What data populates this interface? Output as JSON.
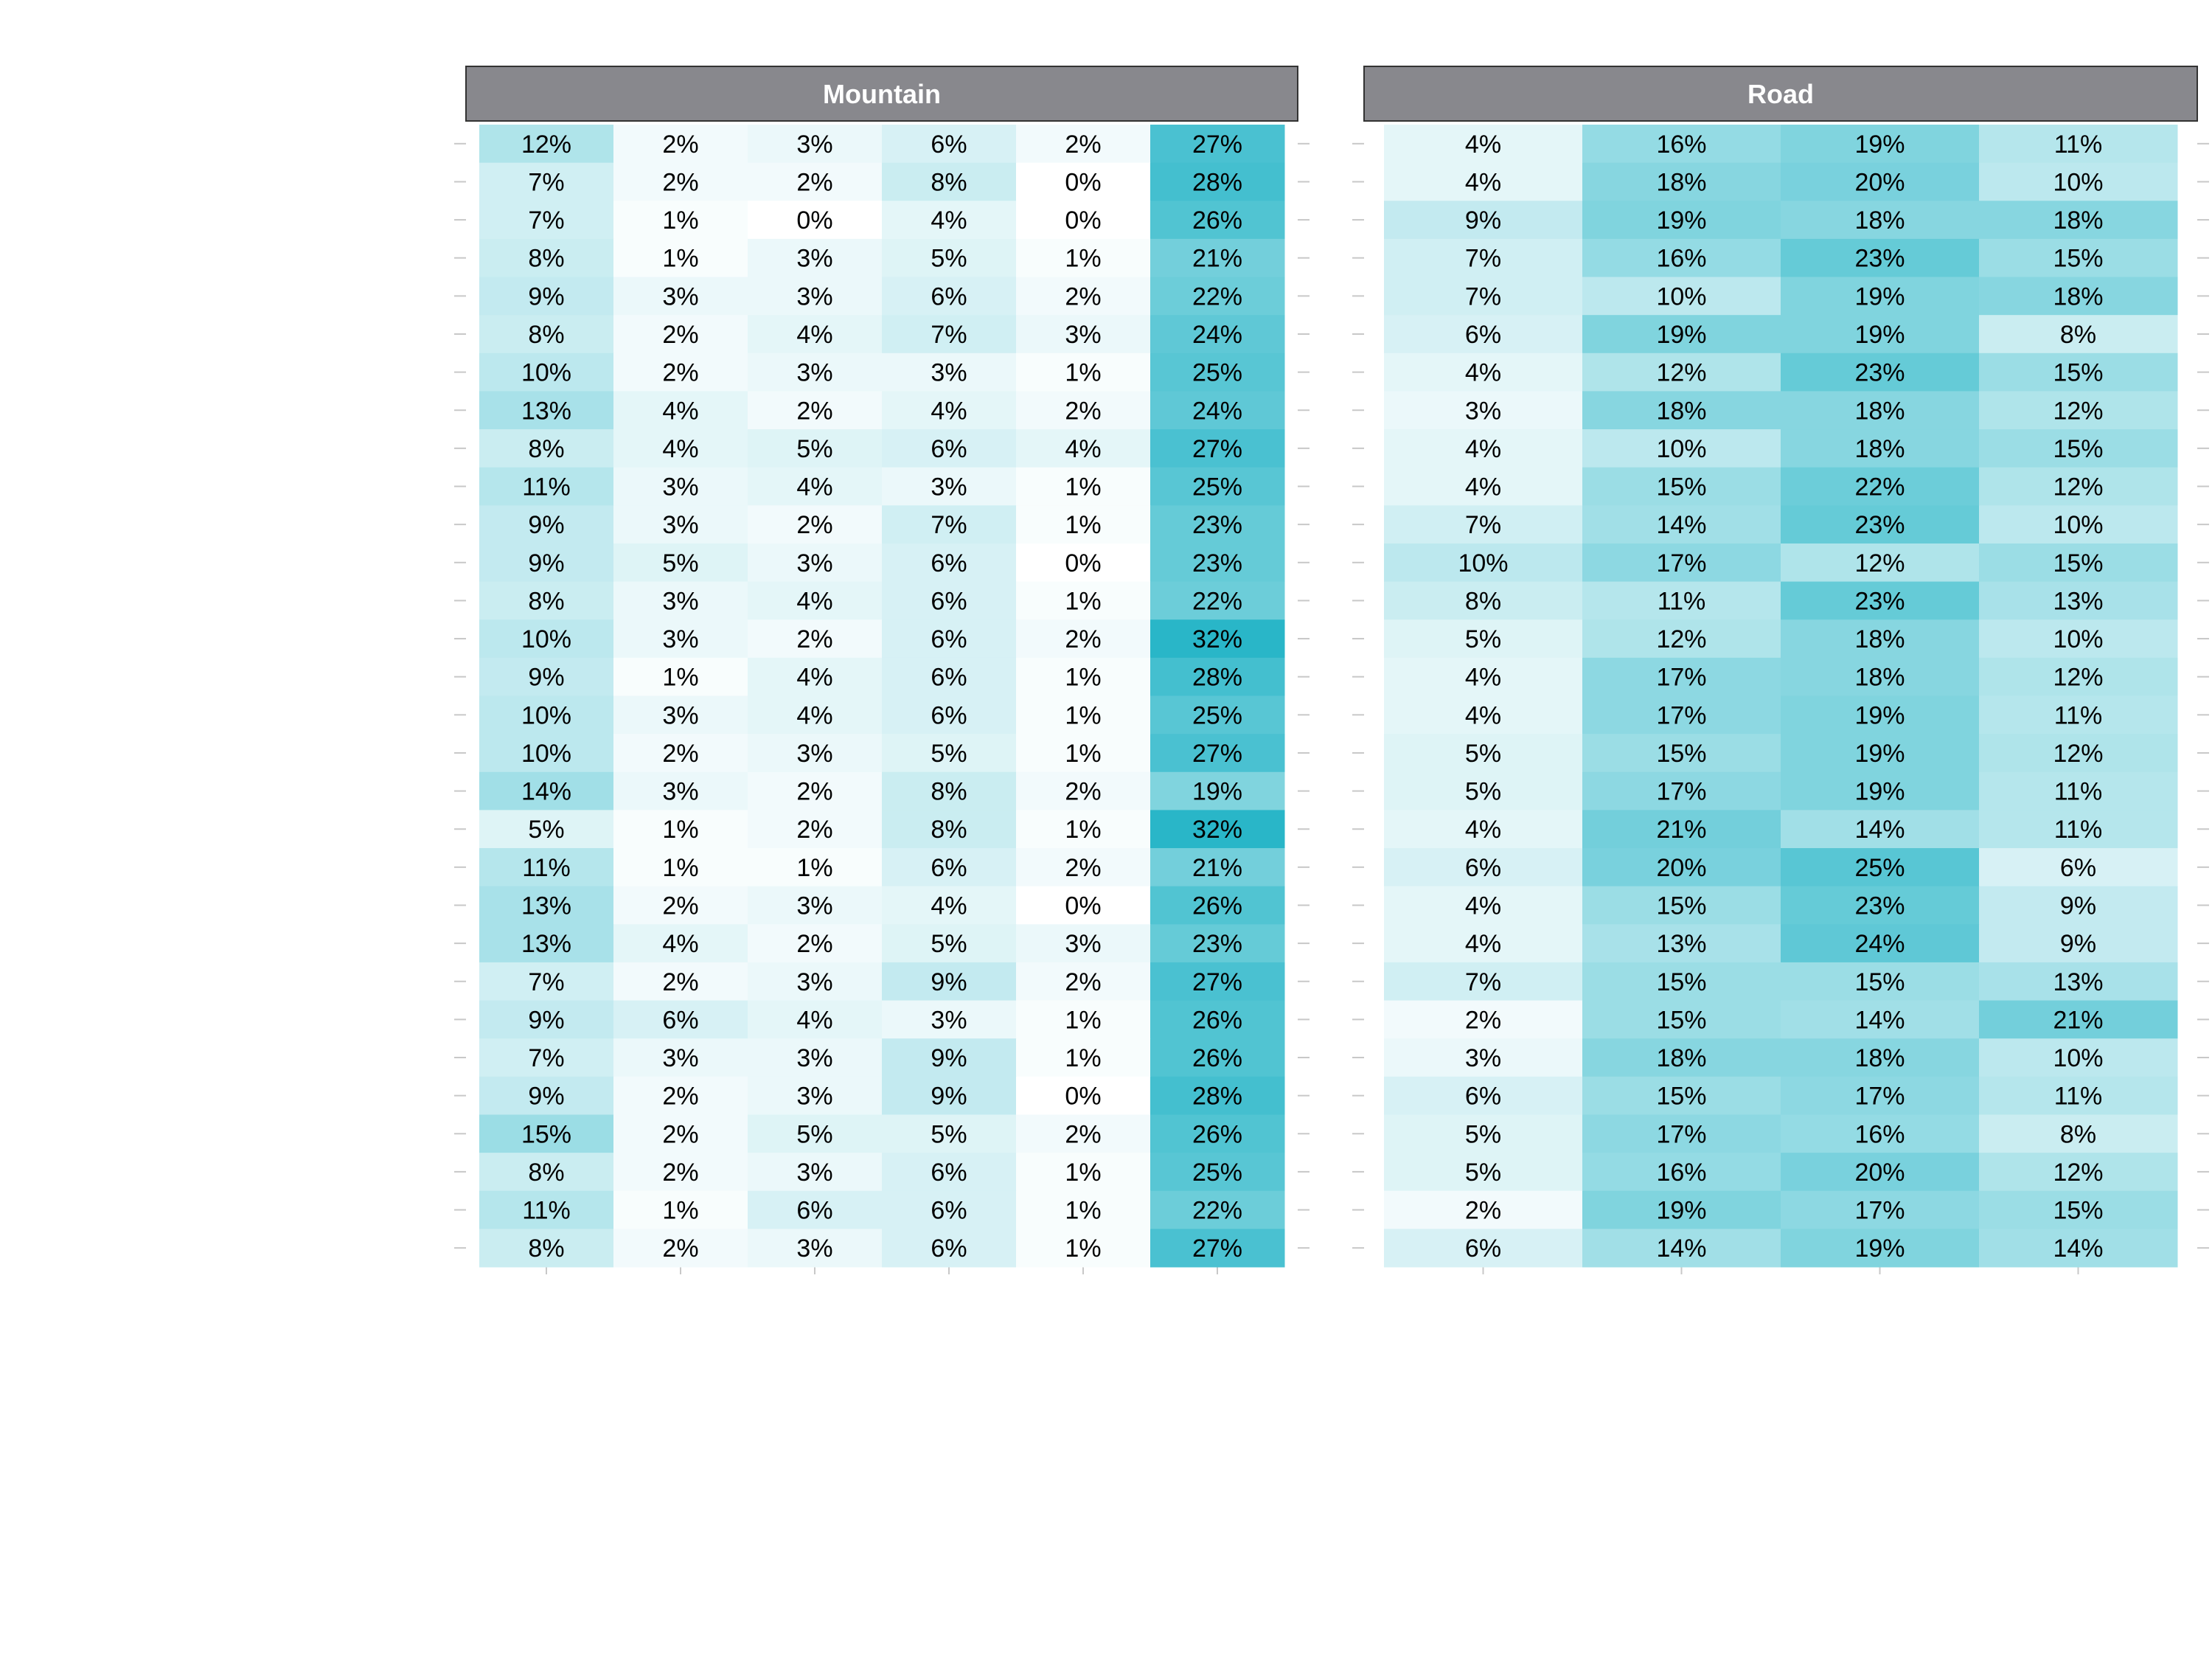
{
  "chart_data": {
    "type": "heatmap",
    "title": "",
    "xlabel": "",
    "ylabel": "",
    "value_format": "percent",
    "color_low": "#ffffff",
    "color_high": "#29b6c8",
    "strip_color": "#88888d",
    "strip_text_color": "#ffffff",
    "grid": false,
    "tick_color": "#c8c8c8",
    "panels": [
      {
        "name": "Mountain",
        "values": [
          [
            0.12,
            0.02,
            0.03,
            0.06,
            0.02,
            0.27
          ],
          [
            0.07,
            0.02,
            0.02,
            0.08,
            0.0,
            0.28
          ],
          [
            0.07,
            0.01,
            0.0,
            0.04,
            0.0,
            0.26
          ],
          [
            0.08,
            0.01,
            0.03,
            0.05,
            0.01,
            0.21
          ],
          [
            0.09,
            0.03,
            0.03,
            0.06,
            0.02,
            0.22
          ],
          [
            0.08,
            0.02,
            0.04,
            0.07,
            0.03,
            0.24
          ],
          [
            0.1,
            0.02,
            0.03,
            0.03,
            0.01,
            0.25
          ],
          [
            0.13,
            0.04,
            0.02,
            0.04,
            0.02,
            0.24
          ],
          [
            0.08,
            0.04,
            0.05,
            0.06,
            0.04,
            0.27
          ],
          [
            0.11,
            0.03,
            0.04,
            0.03,
            0.01,
            0.25
          ],
          [
            0.09,
            0.03,
            0.02,
            0.07,
            0.01,
            0.23
          ],
          [
            0.09,
            0.05,
            0.03,
            0.06,
            0.0,
            0.23
          ],
          [
            0.08,
            0.03,
            0.04,
            0.06,
            0.01,
            0.22
          ],
          [
            0.1,
            0.03,
            0.02,
            0.06,
            0.02,
            0.32
          ],
          [
            0.09,
            0.01,
            0.04,
            0.06,
            0.01,
            0.28
          ],
          [
            0.1,
            0.03,
            0.04,
            0.06,
            0.01,
            0.25
          ],
          [
            0.1,
            0.02,
            0.03,
            0.05,
            0.01,
            0.27
          ],
          [
            0.14,
            0.03,
            0.02,
            0.08,
            0.02,
            0.19
          ],
          [
            0.05,
            0.01,
            0.02,
            0.08,
            0.01,
            0.32
          ],
          [
            0.11,
            0.01,
            0.01,
            0.06,
            0.02,
            0.21
          ],
          [
            0.13,
            0.02,
            0.03,
            0.04,
            0.0,
            0.26
          ],
          [
            0.13,
            0.04,
            0.02,
            0.05,
            0.03,
            0.23
          ],
          [
            0.07,
            0.02,
            0.03,
            0.09,
            0.02,
            0.27
          ],
          [
            0.09,
            0.06,
            0.04,
            0.03,
            0.01,
            0.26
          ],
          [
            0.07,
            0.03,
            0.03,
            0.09,
            0.01,
            0.26
          ],
          [
            0.09,
            0.02,
            0.03,
            0.09,
            0.0,
            0.28
          ],
          [
            0.15,
            0.02,
            0.05,
            0.05,
            0.02,
            0.26
          ],
          [
            0.08,
            0.02,
            0.03,
            0.06,
            0.01,
            0.25
          ],
          [
            0.11,
            0.01,
            0.06,
            0.06,
            0.01,
            0.22
          ],
          [
            0.08,
            0.02,
            0.03,
            0.06,
            0.01,
            0.27
          ]
        ]
      },
      {
        "name": "Road",
        "values": [
          [
            0.04,
            0.16,
            0.19,
            0.11
          ],
          [
            0.04,
            0.18,
            0.2,
            0.1
          ],
          [
            0.09,
            0.19,
            0.18,
            0.18
          ],
          [
            0.07,
            0.16,
            0.23,
            0.15
          ],
          [
            0.07,
            0.1,
            0.19,
            0.18
          ],
          [
            0.06,
            0.19,
            0.19,
            0.08
          ],
          [
            0.04,
            0.12,
            0.23,
            0.15
          ],
          [
            0.03,
            0.18,
            0.18,
            0.12
          ],
          [
            0.04,
            0.1,
            0.18,
            0.15
          ],
          [
            0.04,
            0.15,
            0.22,
            0.12
          ],
          [
            0.07,
            0.14,
            0.23,
            0.1
          ],
          [
            0.1,
            0.17,
            0.12,
            0.15
          ],
          [
            0.08,
            0.11,
            0.23,
            0.13
          ],
          [
            0.05,
            0.12,
            0.18,
            0.1
          ],
          [
            0.04,
            0.17,
            0.18,
            0.12
          ],
          [
            0.04,
            0.17,
            0.19,
            0.11
          ],
          [
            0.05,
            0.15,
            0.19,
            0.12
          ],
          [
            0.05,
            0.17,
            0.19,
            0.11
          ],
          [
            0.04,
            0.21,
            0.14,
            0.11
          ],
          [
            0.06,
            0.2,
            0.25,
            0.06
          ],
          [
            0.04,
            0.15,
            0.23,
            0.09
          ],
          [
            0.04,
            0.13,
            0.24,
            0.09
          ],
          [
            0.07,
            0.15,
            0.15,
            0.13
          ],
          [
            0.02,
            0.15,
            0.14,
            0.21
          ],
          [
            0.03,
            0.18,
            0.18,
            0.1
          ],
          [
            0.06,
            0.15,
            0.17,
            0.11
          ],
          [
            0.05,
            0.17,
            0.16,
            0.08
          ],
          [
            0.05,
            0.16,
            0.2,
            0.12
          ],
          [
            0.02,
            0.19,
            0.17,
            0.15
          ],
          [
            0.06,
            0.14,
            0.19,
            0.14
          ]
        ]
      }
    ]
  }
}
